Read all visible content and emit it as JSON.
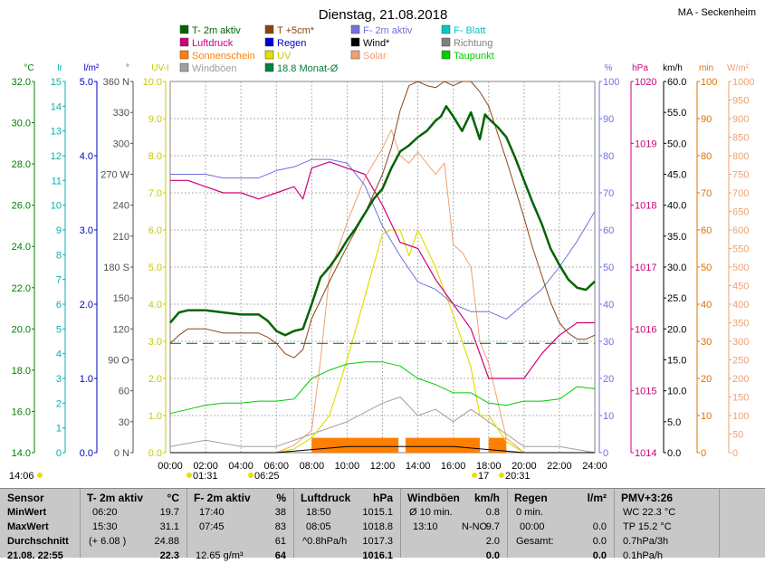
{
  "header": {
    "title": "Dienstag, 21.08.2018",
    "station": "MA - Seckenheim"
  },
  "legend": [
    {
      "label": "T- 2m aktiv",
      "color": "#006400"
    },
    {
      "label": "T +5cm*",
      "color": "#8b4513"
    },
    {
      "label": "F- 2m aktiv",
      "color": "#7070e0"
    },
    {
      "label": "F- Blatt",
      "color": "#00c8c8"
    },
    {
      "label": "Luftdruck",
      "color": "#d0007a"
    },
    {
      "label": "Regen",
      "color": "#0000d0"
    },
    {
      "label": "Wind*",
      "color": "#000000"
    },
    {
      "label": "Richtung",
      "color": "#808080"
    },
    {
      "label": "Sonnenschein",
      "color": "#ff8000"
    },
    {
      "label": "UV",
      "color": "#e0e000"
    },
    {
      "label": "Solar",
      "color": "#f0a070"
    },
    {
      "label": "Taupunkt",
      "color": "#00cc00"
    },
    {
      "label": "Windböen",
      "color": "#a0a0a0"
    },
    {
      "label": "18.8 Monat-Ø",
      "color": "#008040"
    }
  ],
  "axes_left": [
    {
      "unit": "°C",
      "color": "#008000",
      "ticks": [
        "32.0",
        "30.0",
        "28.0",
        "26.0",
        "24.0",
        "22.0",
        "20.0",
        "18.0",
        "16.0",
        "14.0"
      ]
    },
    {
      "unit": "lr",
      "color": "#00b0b0",
      "ticks": [
        "15",
        "14",
        "13",
        "12",
        "11",
        "10",
        "9",
        "8",
        "7",
        "6",
        "5",
        "4",
        "3",
        "2",
        "1",
        "0"
      ]
    },
    {
      "unit": "l/m²",
      "color": "#0000c0",
      "ticks": [
        "5.0",
        "4.0",
        "3.0",
        "2.0",
        "1.0",
        "0.0"
      ]
    },
    {
      "unit": "°",
      "color": "#505050",
      "ticks": [
        "360 N",
        "330",
        "300",
        "270 W",
        "240",
        "210",
        "180 S",
        "150",
        "120",
        "90 O",
        "60",
        "30",
        "0 N"
      ]
    },
    {
      "unit": "UV-I",
      "color": "#c8c800",
      "ticks": [
        "10.0",
        "9.0",
        "8.0",
        "7.0",
        "6.0",
        "5.0",
        "4.0",
        "3.0",
        "2.0",
        "1.0",
        "0.0"
      ]
    }
  ],
  "axes_right": [
    {
      "unit": "%",
      "color": "#7070e0",
      "ticks": [
        "100",
        "90",
        "80",
        "70",
        "60",
        "50",
        "40",
        "30",
        "20",
        "10",
        "0"
      ]
    },
    {
      "unit": "hPa",
      "color": "#d0007a",
      "ticks": [
        "1020",
        "1019",
        "1018",
        "1017",
        "1016",
        "1015",
        "1014"
      ]
    },
    {
      "unit": "km/h",
      "color": "#000000",
      "ticks": [
        "60.0",
        "55.0",
        "50.0",
        "45.0",
        "40.0",
        "35.0",
        "30.0",
        "25.0",
        "20.0",
        "15.0",
        "10.0",
        "5.0",
        "0.0"
      ]
    },
    {
      "unit": "min",
      "color": "#e07000",
      "ticks": [
        "100",
        "90",
        "80",
        "70",
        "60",
        "50",
        "40",
        "30",
        "20",
        "10",
        "0"
      ]
    },
    {
      "unit": "W/m²",
      "color": "#f0a070",
      "ticks": [
        "1000",
        "950",
        "900",
        "850",
        "800",
        "750",
        "700",
        "650",
        "600",
        "550",
        "500",
        "450",
        "400",
        "350",
        "300",
        "250",
        "200",
        "150",
        "100",
        "50",
        "0"
      ]
    }
  ],
  "x_ticks": [
    "00:00",
    "02:00",
    "04:00",
    "06:00",
    "08:00",
    "10:00",
    "12:00",
    "14:00",
    "16:00",
    "18:00",
    "20:00",
    "22:00",
    "24:00"
  ],
  "sun_events": [
    "14:06",
    "01:31",
    "06:25",
    "17",
    "20:31"
  ],
  "chart_data": {
    "type": "line",
    "x_unit": "hour",
    "xlim": [
      0,
      24
    ],
    "series": [
      {
        "name": "T- 2m aktiv",
        "unit": "°C",
        "ylim": [
          14,
          32
        ],
        "x": [
          0,
          0.5,
          1,
          1.5,
          2,
          3,
          4,
          5,
          5.5,
          6,
          6.5,
          7,
          7.5,
          8,
          8.5,
          9,
          9.5,
          10,
          10.5,
          11,
          11.5,
          12,
          12.5,
          13,
          13.5,
          14,
          14.5,
          15,
          15.3,
          15.6,
          16,
          16.5,
          17,
          17.5,
          17.8,
          18,
          18.5,
          19,
          19.5,
          20,
          20.5,
          21,
          21.5,
          22,
          22.5,
          23,
          23.5,
          24
        ],
        "y": [
          20.3,
          20.8,
          20.9,
          20.9,
          20.9,
          20.8,
          20.7,
          20.7,
          20.4,
          19.9,
          19.7,
          19.9,
          20.0,
          21.2,
          22.5,
          23.0,
          23.6,
          24.3,
          24.9,
          25.6,
          26.3,
          26.8,
          27.8,
          28.6,
          28.9,
          29.3,
          29.6,
          30.1,
          30.3,
          30.8,
          30.3,
          29.6,
          30.5,
          29.2,
          30.4,
          30.2,
          29.8,
          29.3,
          28.3,
          27.2,
          26.1,
          25.1,
          23.9,
          23.1,
          22.4,
          22.0,
          21.9,
          22.3
        ]
      },
      {
        "name": "T +5cm*",
        "unit": "°C",
        "ylim": [
          14,
          32
        ],
        "x": [
          0,
          0.5,
          1,
          2,
          3,
          4,
          5,
          5.5,
          6,
          6.5,
          7,
          7.5,
          8,
          9,
          10,
          11,
          12,
          12.5,
          13,
          13.5,
          14,
          14.5,
          15,
          15.5,
          16,
          16.5,
          17,
          17.5,
          18,
          18.5,
          19,
          19.5,
          20,
          20.5,
          21,
          21.5,
          22,
          22.5,
          23,
          23.5,
          24
        ],
        "y": [
          19.3,
          19.7,
          20.0,
          20.0,
          19.8,
          19.8,
          19.8,
          19.6,
          19.3,
          18.8,
          18.6,
          19.0,
          20.5,
          22.3,
          24.0,
          25.6,
          27.5,
          28.8,
          30.6,
          31.8,
          32.2,
          31.8,
          31.7,
          32.2,
          31.8,
          32.3,
          32.0,
          31.5,
          30.8,
          29.5,
          28.2,
          26.8,
          25.4,
          23.9,
          22.6,
          21.3,
          20.3,
          19.8,
          19.5,
          19.5,
          19.7
        ]
      },
      {
        "name": "F- 2m aktiv",
        "unit": "%",
        "ylim": [
          0,
          100
        ],
        "x": [
          0,
          1,
          2,
          3,
          4,
          5,
          6,
          7,
          8,
          9,
          10,
          11,
          12,
          13,
          14,
          15,
          16,
          17,
          18,
          19,
          20,
          21,
          22,
          23,
          24
        ],
        "y": [
          75,
          75,
          75,
          74,
          74,
          74,
          76,
          77,
          79,
          79,
          78,
          72,
          61,
          53,
          46,
          44,
          40,
          38,
          38,
          36,
          40,
          44,
          50,
          57,
          65
        ]
      },
      {
        "name": "Luftdruck",
        "unit": "hPa",
        "ylim": [
          1014,
          1020
        ],
        "x": [
          0,
          1,
          2,
          3,
          4,
          5,
          6,
          7,
          7.5,
          8,
          9,
          10,
          11,
          12,
          13,
          14,
          15,
          16,
          17,
          18,
          19,
          19.5,
          20,
          21,
          22,
          23,
          24
        ],
        "y": [
          1018.4,
          1018.4,
          1018.3,
          1018.2,
          1018.2,
          1018.1,
          1018.2,
          1018.3,
          1018.1,
          1018.6,
          1018.7,
          1018.6,
          1018.5,
          1018.0,
          1017.4,
          1017.3,
          1016.8,
          1016.4,
          1016.0,
          1015.2,
          1015.2,
          1015.2,
          1015.2,
          1015.6,
          1015.9,
          1016.1,
          1016.1
        ]
      },
      {
        "name": "Taupunkt",
        "unit": "°C",
        "ylim": [
          14,
          32
        ],
        "x": [
          0,
          1,
          2,
          3,
          4,
          5,
          6,
          7,
          8,
          9,
          10,
          11,
          12,
          13,
          14,
          15,
          16,
          17,
          18,
          19,
          20,
          21,
          22,
          23,
          24
        ],
        "y": [
          15.9,
          16.1,
          16.3,
          16.4,
          16.4,
          16.5,
          16.5,
          16.6,
          17.6,
          18.0,
          18.3,
          18.4,
          18.4,
          18.2,
          17.6,
          17.3,
          16.9,
          16.9,
          16.4,
          16.3,
          16.5,
          16.5,
          16.6,
          17.2,
          17.1
        ]
      },
      {
        "name": "UV",
        "unit": "UV-I",
        "ylim": [
          0,
          10
        ],
        "x": [
          6,
          7,
          8,
          9,
          10,
          11,
          12,
          12.5,
          13,
          13.5,
          14,
          15,
          16,
          17,
          17.5,
          18,
          19,
          20
        ],
        "y": [
          0,
          0.1,
          0.4,
          1.0,
          2.5,
          4.2,
          5.9,
          6.0,
          6.0,
          5.3,
          6.0,
          5.0,
          3.7,
          2.3,
          1.0,
          1.0,
          0.3,
          0
        ]
      },
      {
        "name": "Solar",
        "unit": "W/m²",
        "ylim": [
          0,
          1000
        ],
        "x": [
          6,
          7,
          8,
          8.5,
          9,
          10,
          11,
          12,
          12.5,
          13,
          13.5,
          14,
          15,
          15.5,
          16,
          16.5,
          17,
          17.5,
          18,
          19,
          20
        ],
        "y": [
          0,
          20,
          60,
          250,
          480,
          620,
          740,
          820,
          870,
          800,
          780,
          810,
          750,
          780,
          560,
          540,
          500,
          300,
          240,
          40,
          0
        ]
      },
      {
        "name": "Windböen",
        "unit": "km/h",
        "ylim": [
          0,
          60
        ],
        "x": [
          0,
          2,
          4,
          6,
          8,
          10,
          12,
          13,
          14,
          15,
          16,
          17,
          18,
          19,
          20,
          22,
          24
        ],
        "y": [
          1,
          2,
          1,
          1,
          3,
          5,
          8,
          9,
          6,
          7,
          5,
          7,
          5,
          3,
          1,
          1,
          0
        ]
      },
      {
        "name": "Wind*",
        "unit": "km/h",
        "ylim": [
          0,
          60
        ],
        "x": [
          0,
          6,
          8,
          10,
          12,
          14,
          16,
          18,
          20,
          24
        ],
        "y": [
          0,
          0,
          0.5,
          1,
          1,
          1,
          1,
          0.5,
          0,
          0
        ]
      },
      {
        "name": "Sonnenschein",
        "unit": "min",
        "ylim": [
          0,
          100
        ],
        "x": [
          8,
          12.9,
          13.3,
          17.5,
          18,
          19
        ],
        "y": [
          4,
          4,
          4,
          4,
          4,
          4
        ]
      },
      {
        "name": "18.8 Monat-Ø",
        "unit": "°C",
        "ylim": [
          14,
          32
        ],
        "x": [
          0,
          24
        ],
        "y": [
          19.3,
          19.3
        ]
      }
    ]
  },
  "stats": {
    "sensor": {
      "h": "Sensor",
      "r1": "MinWert",
      "r2": "MaxWert",
      "r3": "Durchschnitt",
      "r4": "21.08. 22:55"
    },
    "temp": {
      "h": "T- 2m aktiv",
      "u": "°C",
      "r1a": "06:20",
      "r1b": "19.7",
      "r2a": "15:30",
      "r2b": "31.1",
      "r3a": "(+ 6.08 )",
      "r3b": "24.88",
      "r4b": "22.3"
    },
    "humid": {
      "h": "F- 2m aktiv",
      "u": "%",
      "r1a": "17:40",
      "r1b": "38",
      "r2a": "07:45",
      "r2b": "83",
      "r3b": "61",
      "r4a": "12.65 g/m³",
      "r4b": "64"
    },
    "press": {
      "h": "Luftdruck",
      "u": "hPa",
      "r1a": "18:50",
      "r1b": "1015.1",
      "r2a": "08:05",
      "r2b": "1018.8",
      "r3a": "^0.8hPa/h",
      "r3b": "1017.3",
      "r4b": "1016.1"
    },
    "wind": {
      "h": "Windböen",
      "u": "km/h",
      "r1a": "Ø 10 min.",
      "r1b": "0.8",
      "r2a": "13:10",
      "r2c": "N-NO",
      "r2b": "9.7",
      "r3b": "2.0",
      "r4b": "0.0"
    },
    "rain": {
      "h": "Regen",
      "u": "l/m²",
      "r1a": "0 min.",
      "r2a": "00:00",
      "r2b": "0.0",
      "r3a": "Gesamt:",
      "r3b": "0.0",
      "r4b": "0.0"
    },
    "pmv": {
      "h": "PMV+3:26",
      "r1": "WC 22.3 °C",
      "r2": "TP 15.2 °C",
      "r3": "0.7hPa/3h",
      "r4": "0.1hPa/h"
    }
  }
}
